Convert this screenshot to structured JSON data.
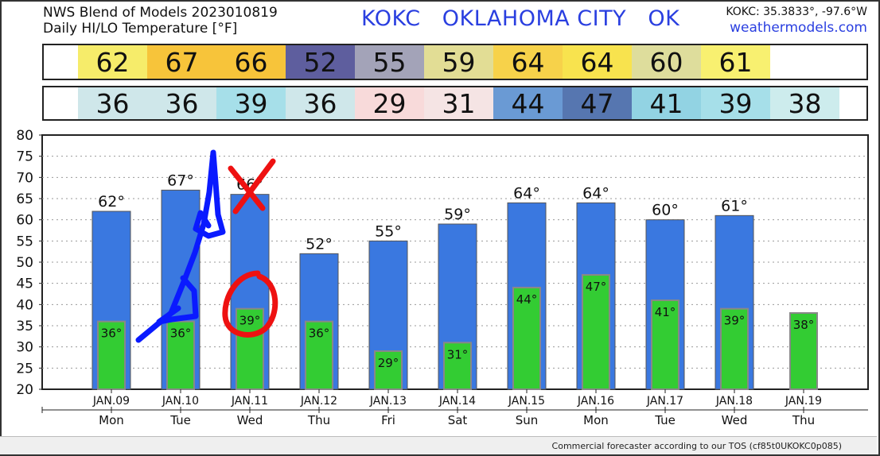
{
  "header": {
    "title_line1": "NWS Blend of Models 2023010819",
    "title_line2": "Daily HI/LO Temperature [°F]",
    "station": "KOKC   OKLAHOMA CITY   OK",
    "coords": "KOKC: 35.3833°, -97.6°W",
    "site": "weathermodels.com"
  },
  "footer_note": "Commercial forecaster according to our TOS (cf85t0UKOKC0p085)",
  "colors": {
    "hi_bar": "#3a78e0",
    "lo_bar": "#33cc33",
    "annotation_blue": "#0a1aff",
    "annotation_red": "#ee1111",
    "hi_cells": [
      "#f6ec6a",
      "#f7c43a",
      "#f7c43a",
      "#5e5e9e",
      "#a3a3b8",
      "#e2dd95",
      "#f7d24a",
      "#f8e34e",
      "#dedd9c",
      "#f8f070"
    ],
    "lo_cells": [
      "#cfe7ea",
      "#cfe7ea",
      "#a6dfe9",
      "#cfe7ea",
      "#f8dada",
      "#f5e4e4",
      "#6a9ad4",
      "#5676b0",
      "#92d3e3",
      "#a6dfe9",
      "#cdeced"
    ]
  },
  "annotations": {
    "marks": [
      "A",
      "X",
      "O"
    ]
  },
  "chart_data": {
    "type": "bar",
    "title": "Daily HI/LO Temperature [°F]",
    "dates": [
      "JAN.09",
      "JAN.10",
      "JAN.11",
      "JAN.12",
      "JAN.13",
      "JAN.14",
      "JAN.15",
      "JAN.16",
      "JAN.17",
      "JAN.18",
      "JAN.19"
    ],
    "days": [
      "Mon",
      "Tue",
      "Wed",
      "Thu",
      "Fri",
      "Sat",
      "Sun",
      "Mon",
      "Tue",
      "Wed",
      "Thu"
    ],
    "series": [
      {
        "name": "HI",
        "values": [
          62,
          67,
          66,
          52,
          55,
          59,
          64,
          64,
          60,
          61,
          null
        ]
      },
      {
        "name": "LO",
        "values": [
          36,
          36,
          39,
          36,
          29,
          31,
          44,
          47,
          41,
          39,
          38
        ]
      }
    ],
    "hi_labels": [
      "62°",
      "67°",
      "66°",
      "52°",
      "55°",
      "59°",
      "64°",
      "64°",
      "60°",
      "61°"
    ],
    "lo_labels": [
      "36°",
      "36°",
      "39°",
      "36°",
      "29°",
      "31°",
      "44°",
      "47°",
      "41°",
      "39°",
      "38°"
    ],
    "hi_row": [
      "62",
      "67",
      "66",
      "52",
      "55",
      "59",
      "64",
      "64",
      "60",
      "61"
    ],
    "lo_row": [
      "36",
      "36",
      "39",
      "36",
      "29",
      "31",
      "44",
      "47",
      "41",
      "39",
      "38"
    ],
    "yticks": [
      "80",
      "75",
      "70",
      "65",
      "60",
      "55",
      "50",
      "45",
      "40",
      "35",
      "30",
      "25",
      "20"
    ],
    "ylim": [
      20,
      80
    ],
    "grid": true
  }
}
